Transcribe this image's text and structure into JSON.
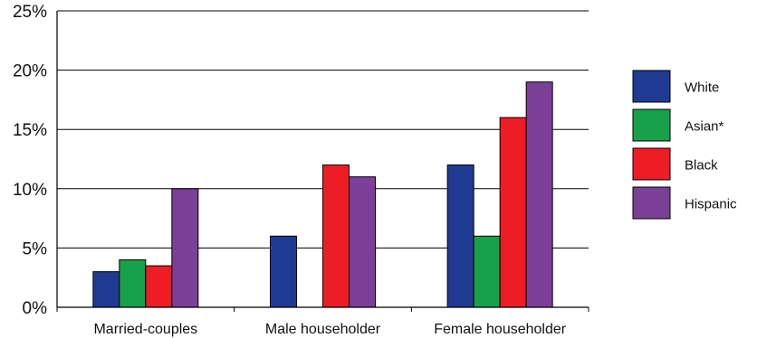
{
  "chart_data": {
    "type": "bar",
    "categories": [
      "Married-couples",
      "Male householder",
      "Female householder"
    ],
    "series": [
      {
        "name": "White",
        "values": [
          3,
          6,
          12
        ],
        "color": "#1f3a93"
      },
      {
        "name": "Asian*",
        "values": [
          4,
          null,
          6
        ],
        "color": "#18a04a"
      },
      {
        "name": "Black",
        "values": [
          3.5,
          12,
          16
        ],
        "color": "#ee1c25"
      },
      {
        "name": "Hispanic",
        "values": [
          10,
          11,
          19
        ],
        "color": "#7b3f98"
      }
    ],
    "ylim": [
      0,
      25
    ],
    "yticks": [
      0,
      5,
      10,
      15,
      20,
      25
    ],
    "ytick_labels": [
      "0%",
      "5%",
      "10%",
      "15%",
      "20%",
      "25%"
    ],
    "grid": true,
    "legend_position": "right"
  }
}
